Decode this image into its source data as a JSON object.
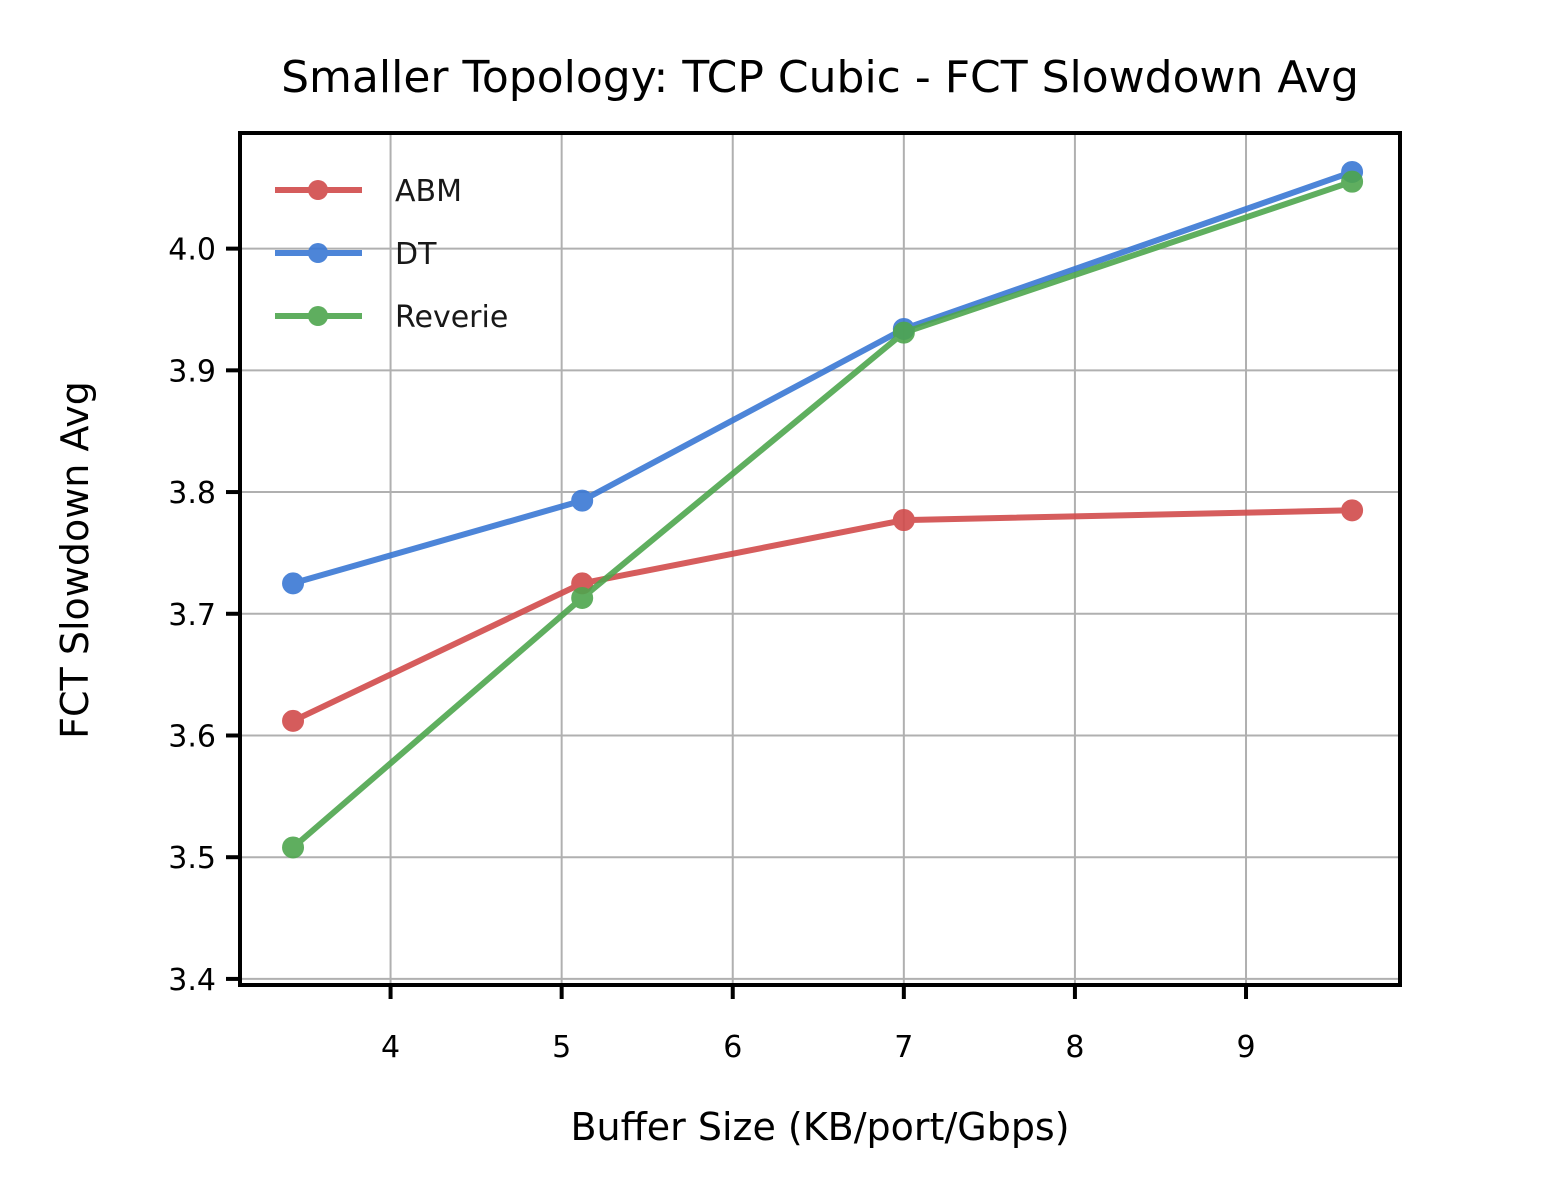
{
  "chart_data": {
    "type": "line",
    "title": "Smaller Topology: TCP Cubic - FCT Slowdown Avg",
    "xlabel": "Buffer Size (KB/port/Gbps)",
    "ylabel": "FCT Slowdown Avg",
    "xlim": [
      3.12,
      9.9
    ],
    "ylim": [
      3.395,
      4.095
    ],
    "xticks": [
      4,
      5,
      6,
      7,
      8,
      9
    ],
    "yticks": [
      3.4,
      3.5,
      3.6,
      3.7,
      3.8,
      3.9,
      4.0
    ],
    "xtick_labels": [
      "4",
      "5",
      "6",
      "7",
      "8",
      "9"
    ],
    "ytick_labels": [
      "3.4",
      "3.5",
      "3.6",
      "3.7",
      "3.8",
      "3.9",
      "4.0"
    ],
    "grid": true,
    "legend_position": "top-left",
    "series": [
      {
        "name": "ABM",
        "color": "#d14b4b",
        "x": [
          3.43,
          5.12,
          7.0,
          9.62
        ],
        "y": [
          3.612,
          3.725,
          3.777,
          3.785
        ]
      },
      {
        "name": "DT",
        "color": "#3a78d4",
        "x": [
          3.43,
          5.12,
          7.0,
          9.62
        ],
        "y": [
          3.725,
          3.793,
          3.934,
          4.063
        ]
      },
      {
        "name": "Reverie",
        "color": "#4ea64e",
        "x": [
          3.43,
          5.12,
          7.0,
          9.62
        ],
        "y": [
          3.508,
          3.713,
          3.931,
          4.055
        ]
      }
    ]
  }
}
